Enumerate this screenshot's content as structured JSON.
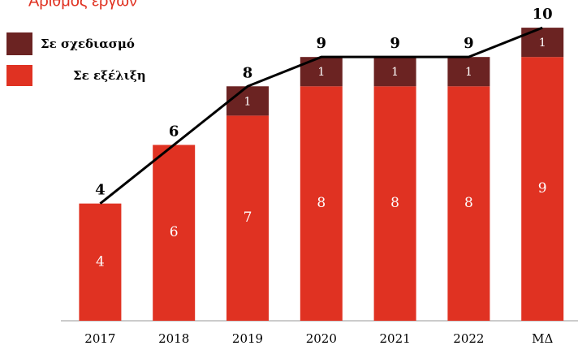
{
  "chart_data": {
    "type": "bar",
    "stacked": true,
    "title": "Αριθμός έργων",
    "categories": [
      "2017",
      "2018",
      "2019",
      "2020",
      "2021",
      "2022",
      "ΜΔ"
    ],
    "series": [
      {
        "name": "Σε εξέλιξη",
        "color": "#e03222",
        "values": [
          4,
          6,
          7,
          8,
          8,
          8,
          9
        ]
      },
      {
        "name": "Σε σχεδιασμό",
        "color": "#6b2322",
        "values": [
          null,
          null,
          1,
          1,
          1,
          1,
          1
        ]
      }
    ],
    "totals": [
      4,
      6,
      8,
      9,
      9,
      9,
      10
    ],
    "line_color": "#000000",
    "ylim": [
      0,
      11
    ]
  }
}
